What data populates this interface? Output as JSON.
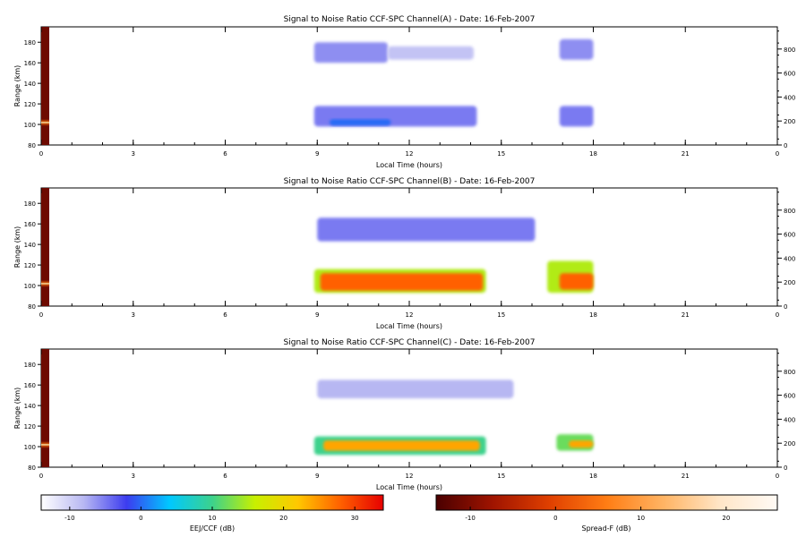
{
  "chart_data": [
    {
      "type": "heatmap",
      "title": "Signal to Noise Ratio CCF-SPC Channel(A) - Date: 16-Feb-2007",
      "xlabel": "Local Time (hours)",
      "ylabel": "Range (km)",
      "xlim": [
        0,
        24
      ],
      "ylim": [
        80,
        195
      ],
      "y2lim": [
        0,
        985
      ],
      "xticks": [
        "0",
        "3",
        "6",
        "9",
        "12",
        "15",
        "18",
        "21",
        "0"
      ],
      "yticks": [
        80,
        100,
        120,
        140,
        160,
        180
      ],
      "y2ticks": [
        0,
        200,
        400,
        600,
        800
      ],
      "regions": [
        {
          "x": [
            8.9,
            11.3
          ],
          "y": [
            160,
            180
          ],
          "snr": -6
        },
        {
          "x": [
            11.3,
            14.1
          ],
          "y": [
            163,
            176
          ],
          "snr": -9
        },
        {
          "x": [
            16.9,
            18.0
          ],
          "y": [
            163,
            183
          ],
          "snr": -6
        },
        {
          "x": [
            8.9,
            14.2
          ],
          "y": [
            98,
            118
          ],
          "snr": -5
        },
        {
          "x": [
            9.4,
            11.4
          ],
          "y": [
            99,
            105
          ],
          "snr": 0
        },
        {
          "x": [
            16.9,
            18.0
          ],
          "y": [
            98,
            118
          ],
          "snr": -5
        }
      ]
    },
    {
      "type": "heatmap",
      "title": "Signal to Noise Ratio CCF-SPC Channel(B) - Date: 16-Feb-2007",
      "xlabel": "Local Time (hours)",
      "ylabel": "Range (km)",
      "xlim": [
        0,
        24
      ],
      "ylim": [
        80,
        195
      ],
      "y2lim": [
        0,
        985
      ],
      "xticks": [
        "0",
        "3",
        "6",
        "9",
        "12",
        "15",
        "18",
        "21",
        "0"
      ],
      "yticks": [
        80,
        100,
        120,
        140,
        160,
        180
      ],
      "y2ticks": [
        0,
        200,
        400,
        600,
        800
      ],
      "regions": [
        {
          "x": [
            9.0,
            16.1
          ],
          "y": [
            143,
            166
          ],
          "snr": -5
        },
        {
          "x": [
            8.9,
            14.5
          ],
          "y": [
            93,
            116
          ],
          "snr": 15
        },
        {
          "x": [
            9.1,
            14.4
          ],
          "y": [
            95,
            112
          ],
          "snr": 28
        },
        {
          "x": [
            16.5,
            18.0
          ],
          "y": [
            93,
            124
          ],
          "snr": 15
        },
        {
          "x": [
            16.9,
            18.0
          ],
          "y": [
            96,
            112
          ],
          "snr": 28
        }
      ]
    },
    {
      "type": "heatmap",
      "title": "Signal to Noise Ratio CCF-SPC Channel(C) - Date: 16-Feb-2007",
      "xlabel": "Local Time (hours)",
      "ylabel": "Range (km)",
      "xlim": [
        0,
        24
      ],
      "ylim": [
        80,
        195
      ],
      "y2lim": [
        0,
        985
      ],
      "xticks": [
        "0",
        "3",
        "6",
        "9",
        "12",
        "15",
        "18",
        "21",
        "0"
      ],
      "yticks": [
        80,
        100,
        120,
        140,
        160,
        180
      ],
      "y2ticks": [
        0,
        200,
        400,
        600,
        800
      ],
      "regions": [
        {
          "x": [
            9.0,
            15.4
          ],
          "y": [
            147,
            165
          ],
          "snr": -8
        },
        {
          "x": [
            8.9,
            14.5
          ],
          "y": [
            92,
            110
          ],
          "snr": 10
        },
        {
          "x": [
            9.2,
            14.3
          ],
          "y": [
            96,
            106
          ],
          "snr": 24
        },
        {
          "x": [
            16.8,
            18.0
          ],
          "y": [
            96,
            112
          ],
          "snr": 12
        },
        {
          "x": [
            17.2,
            18.0
          ],
          "y": [
            99,
            106
          ],
          "snr": 24
        }
      ]
    }
  ],
  "colorbars": [
    {
      "label": "EEJ/CCF (dB)",
      "range": [
        -14,
        34
      ],
      "ticks": [
        "-10",
        "0",
        "10",
        "20",
        "30"
      ],
      "colors": [
        "#ffffff",
        "#b7b7f2",
        "#3c3cf0",
        "#00c8ff",
        "#3cd28c",
        "#c8f000",
        "#ffc800",
        "#ff6000",
        "#e60000"
      ]
    },
    {
      "label": "Spread-F (dB)",
      "range": [
        -14,
        26
      ],
      "ticks": [
        "-10",
        "0",
        "10",
        "20"
      ],
      "colors": [
        "#4a0000",
        "#a01400",
        "#e04000",
        "#ff7d14",
        "#ffb464",
        "#ffe6c8",
        "#fffaf5"
      ]
    }
  ]
}
